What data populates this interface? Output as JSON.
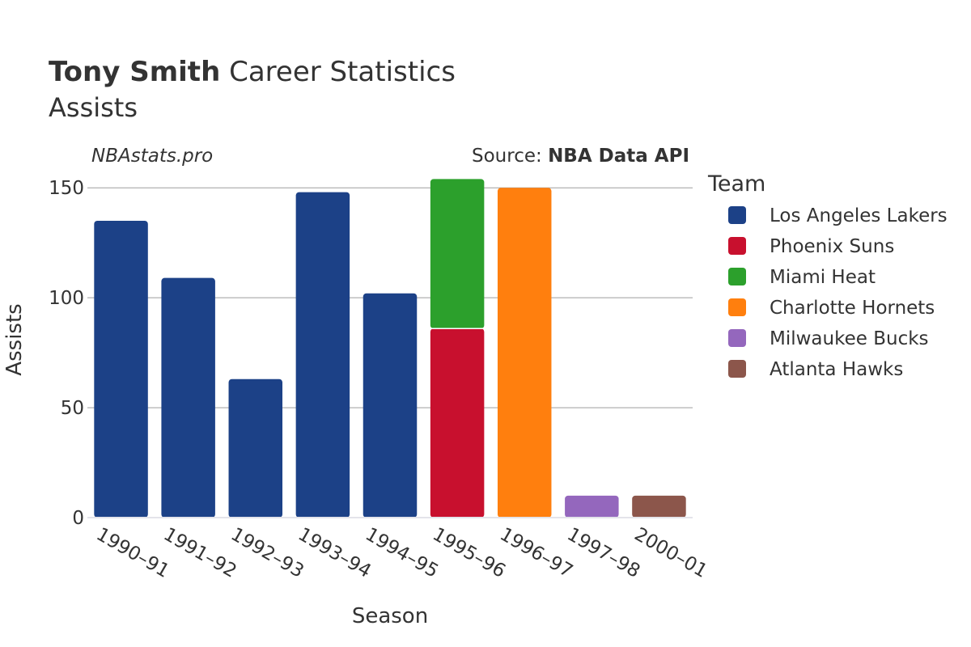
{
  "chart_data": {
    "type": "bar",
    "stacked": true,
    "title_bold": "Tony Smith",
    "title_rest": " Career Statistics",
    "subtitle": "Assists",
    "watermark": "NBAstats.pro",
    "source_prefix": "Source: ",
    "source_name": "NBA Data API",
    "xlabel": "Season",
    "ylabel": "Assists",
    "ylim": [
      0,
      160
    ],
    "yticks": [
      0,
      50,
      100,
      150
    ],
    "ytick_labels": [
      "0",
      "50",
      "100",
      "150"
    ],
    "grid": true,
    "legend_title": "Team",
    "legend_position": "right",
    "categories": [
      "1990–91",
      "1991–92",
      "1992–93",
      "1993–94",
      "1994–95",
      "1995–96",
      "1996–97",
      "1997–98",
      "2000–01"
    ],
    "series": [
      {
        "name": "Los Angeles Lakers",
        "color": "#1c4187",
        "values": [
          135,
          109,
          63,
          148,
          102,
          0,
          0,
          0,
          0
        ]
      },
      {
        "name": "Phoenix Suns",
        "color": "#c8102e",
        "values": [
          0,
          0,
          0,
          0,
          0,
          86,
          0,
          0,
          0
        ]
      },
      {
        "name": "Miami Heat",
        "color": "#2ca02c",
        "values": [
          0,
          0,
          0,
          0,
          0,
          68,
          0,
          0,
          0
        ]
      },
      {
        "name": "Charlotte Hornets",
        "color": "#ff7f0e",
        "values": [
          0,
          0,
          0,
          0,
          0,
          0,
          150,
          0,
          0
        ]
      },
      {
        "name": "Milwaukee Bucks",
        "color": "#9467bd",
        "values": [
          0,
          0,
          0,
          0,
          0,
          0,
          0,
          10,
          0
        ]
      },
      {
        "name": "Atlanta Hawks",
        "color": "#8c564b",
        "values": [
          0,
          0,
          0,
          0,
          0,
          0,
          0,
          0,
          10
        ]
      }
    ]
  }
}
